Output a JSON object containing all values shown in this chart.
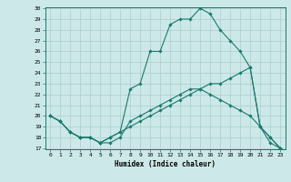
{
  "xlabel": "Humidex (Indice chaleur)",
  "ylabel": "",
  "bg_color": "#cce8e8",
  "line_color": "#1a7a6e",
  "grid_color": "#aacece",
  "ylim": [
    17,
    30
  ],
  "xlim": [
    -0.5,
    23.5
  ],
  "yticks": [
    17,
    18,
    19,
    20,
    21,
    22,
    23,
    24,
    25,
    26,
    27,
    28,
    29,
    30
  ],
  "xticks": [
    0,
    1,
    2,
    3,
    4,
    5,
    6,
    7,
    8,
    9,
    10,
    11,
    12,
    13,
    14,
    15,
    16,
    17,
    18,
    19,
    20,
    21,
    22,
    23
  ],
  "line1_x": [
    0,
    1,
    2,
    3,
    4,
    5,
    6,
    7,
    8,
    9,
    10,
    11,
    12,
    13,
    14,
    15,
    16,
    17,
    18,
    19,
    20,
    21,
    22,
    23
  ],
  "line1_y": [
    20,
    19.5,
    18.5,
    18,
    18,
    17.5,
    17.5,
    18,
    19.5,
    20,
    20.5,
    21,
    21.5,
    22,
    22.5,
    22.5,
    22,
    21.5,
    21,
    20.5,
    20,
    19,
    17.5,
    17
  ],
  "line2_x": [
    0,
    1,
    2,
    3,
    4,
    5,
    6,
    7,
    8,
    9,
    10,
    11,
    12,
    13,
    14,
    15,
    16,
    17,
    18,
    19,
    20,
    21,
    22,
    23
  ],
  "line2_y": [
    20,
    19.5,
    18.5,
    18,
    18,
    17.5,
    18,
    18.5,
    22.5,
    23,
    26,
    26,
    28.5,
    29,
    29,
    30,
    29.5,
    28,
    27,
    26,
    24.5,
    19,
    18,
    17
  ],
  "line3_x": [
    0,
    1,
    2,
    3,
    4,
    5,
    6,
    7,
    8,
    9,
    10,
    11,
    12,
    13,
    14,
    15,
    16,
    17,
    18,
    19,
    20,
    21,
    22,
    23
  ],
  "line3_y": [
    20,
    19.5,
    18.5,
    18,
    18,
    17.5,
    18,
    18.5,
    19,
    19.5,
    20,
    20.5,
    21,
    21.5,
    22,
    22.5,
    23,
    23,
    23.5,
    24,
    24.5,
    19,
    18,
    17
  ]
}
